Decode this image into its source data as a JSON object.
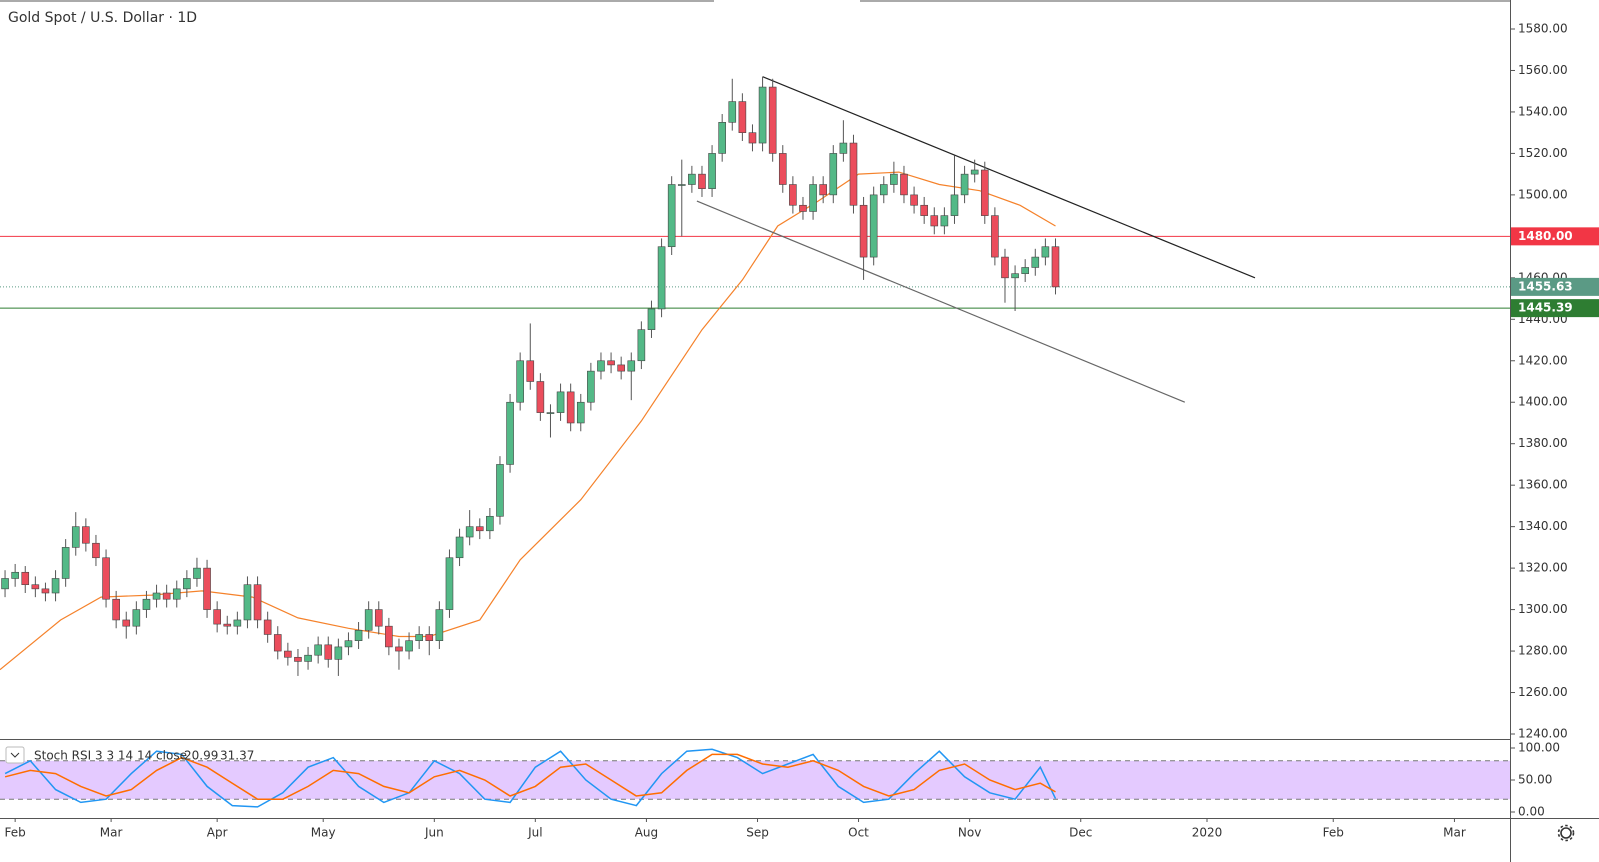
{
  "chart_data": {
    "type": "candlestick",
    "title": "Gold Spot / U.S. Dollar · 1D",
    "up_color": "#53b987",
    "down_color": "#eb4d5c",
    "x": [
      0,
      2,
      4,
      6,
      8,
      10,
      12,
      14,
      16,
      18,
      20,
      22,
      24,
      26,
      28,
      30,
      32,
      34,
      36,
      38,
      40,
      42,
      44,
      46,
      48,
      50,
      52,
      54,
      56,
      58,
      60,
      62,
      64,
      66,
      68,
      70,
      72,
      74,
      76,
      78,
      80,
      82,
      84,
      86,
      88,
      90,
      92,
      94,
      96,
      98,
      100,
      102,
      104,
      106,
      108,
      110,
      112,
      114,
      116,
      118,
      120,
      122,
      124,
      126,
      128,
      130,
      132,
      134,
      136,
      138,
      140,
      142,
      144,
      146,
      148,
      150,
      152,
      154,
      156,
      158,
      160,
      162,
      164,
      166,
      168,
      170,
      172,
      174,
      176,
      178,
      180,
      182,
      184,
      186,
      188,
      190,
      192,
      194,
      196,
      198,
      200,
      202,
      204,
      206,
      208
    ],
    "ohlc": [
      [
        1310,
        1319,
        1306,
        1315
      ],
      [
        1315,
        1322,
        1311,
        1318
      ],
      [
        1318,
        1321,
        1308,
        1312
      ],
      [
        1312,
        1316,
        1306,
        1310
      ],
      [
        1310,
        1313,
        1304,
        1308
      ],
      [
        1308,
        1319,
        1304,
        1315
      ],
      [
        1315,
        1334,
        1311,
        1330
      ],
      [
        1330,
        1347,
        1326,
        1340
      ],
      [
        1340,
        1344,
        1328,
        1332
      ],
      [
        1332,
        1336,
        1321,
        1325
      ],
      [
        1325,
        1329,
        1301,
        1305
      ],
      [
        1305,
        1309,
        1291,
        1295
      ],
      [
        1295,
        1299,
        1286,
        1292
      ],
      [
        1292,
        1304,
        1288,
        1300
      ],
      [
        1300,
        1309,
        1296,
        1305
      ],
      [
        1305,
        1312,
        1301,
        1308
      ],
      [
        1308,
        1312,
        1301,
        1305
      ],
      [
        1305,
        1314,
        1301,
        1310
      ],
      [
        1310,
        1319,
        1306,
        1315
      ],
      [
        1315,
        1325,
        1311,
        1320
      ],
      [
        1320,
        1324,
        1296,
        1300
      ],
      [
        1300,
        1304,
        1289,
        1293
      ],
      [
        1293,
        1297,
        1288,
        1292
      ],
      [
        1292,
        1299,
        1288,
        1295
      ],
      [
        1295,
        1316,
        1291,
        1312
      ],
      [
        1312,
        1316,
        1291,
        1295
      ],
      [
        1295,
        1299,
        1284,
        1288
      ],
      [
        1288,
        1292,
        1276,
        1280
      ],
      [
        1280,
        1284,
        1273,
        1277
      ],
      [
        1277,
        1281,
        1268,
        1275
      ],
      [
        1275,
        1282,
        1271,
        1278
      ],
      [
        1278,
        1287,
        1274,
        1283
      ],
      [
        1283,
        1287,
        1272,
        1276
      ],
      [
        1276,
        1286,
        1268,
        1282
      ],
      [
        1282,
        1289,
        1278,
        1285
      ],
      [
        1285,
        1294,
        1281,
        1290
      ],
      [
        1290,
        1304,
        1286,
        1300
      ],
      [
        1300,
        1304,
        1288,
        1292
      ],
      [
        1292,
        1296,
        1278,
        1282
      ],
      [
        1282,
        1286,
        1271,
        1280
      ],
      [
        1280,
        1289,
        1276,
        1285
      ],
      [
        1285,
        1292,
        1281,
        1288
      ],
      [
        1288,
        1292,
        1278,
        1285
      ],
      [
        1285,
        1304,
        1281,
        1300
      ],
      [
        1300,
        1329,
        1296,
        1325
      ],
      [
        1325,
        1339,
        1321,
        1335
      ],
      [
        1335,
        1348,
        1331,
        1340
      ],
      [
        1340,
        1344,
        1334,
        1338
      ],
      [
        1338,
        1349,
        1334,
        1345
      ],
      [
        1345,
        1374,
        1341,
        1370
      ],
      [
        1370,
        1404,
        1366,
        1400
      ],
      [
        1400,
        1424,
        1396,
        1420
      ],
      [
        1420,
        1438,
        1406,
        1410
      ],
      [
        1410,
        1414,
        1391,
        1395
      ],
      [
        1395,
        1399,
        1383,
        1395
      ],
      [
        1395,
        1409,
        1391,
        1405
      ],
      [
        1405,
        1409,
        1386,
        1390
      ],
      [
        1390,
        1404,
        1386,
        1400
      ],
      [
        1400,
        1419,
        1396,
        1415
      ],
      [
        1415,
        1424,
        1411,
        1420
      ],
      [
        1420,
        1424,
        1414,
        1418
      ],
      [
        1418,
        1422,
        1411,
        1415
      ],
      [
        1415,
        1424,
        1401,
        1420
      ],
      [
        1420,
        1439,
        1416,
        1435
      ],
      [
        1435,
        1449,
        1431,
        1445
      ],
      [
        1445,
        1479,
        1441,
        1475
      ],
      [
        1475,
        1509,
        1471,
        1505
      ],
      [
        1505,
        1517,
        1480,
        1505
      ],
      [
        1505,
        1514,
        1501,
        1510
      ],
      [
        1510,
        1514,
        1499,
        1503
      ],
      [
        1503,
        1524,
        1499,
        1520
      ],
      [
        1520,
        1539,
        1516,
        1535
      ],
      [
        1535,
        1556,
        1531,
        1545
      ],
      [
        1545,
        1549,
        1526,
        1530
      ],
      [
        1530,
        1534,
        1521,
        1525
      ],
      [
        1525,
        1557,
        1521,
        1552
      ],
      [
        1552,
        1556,
        1516,
        1520
      ],
      [
        1520,
        1524,
        1501,
        1505
      ],
      [
        1505,
        1509,
        1491,
        1495
      ],
      [
        1495,
        1499,
        1488,
        1492
      ],
      [
        1492,
        1509,
        1488,
        1505
      ],
      [
        1505,
        1509,
        1496,
        1500
      ],
      [
        1500,
        1524,
        1496,
        1520
      ],
      [
        1520,
        1536,
        1516,
        1525
      ],
      [
        1525,
        1529,
        1491,
        1495
      ],
      [
        1495,
        1499,
        1459,
        1470
      ],
      [
        1470,
        1504,
        1466,
        1500
      ],
      [
        1500,
        1509,
        1496,
        1505
      ],
      [
        1505,
        1516,
        1501,
        1510
      ],
      [
        1510,
        1514,
        1496,
        1500
      ],
      [
        1500,
        1504,
        1491,
        1495
      ],
      [
        1495,
        1499,
        1486,
        1490
      ],
      [
        1490,
        1494,
        1481,
        1485
      ],
      [
        1485,
        1494,
        1481,
        1490
      ],
      [
        1490,
        1519,
        1486,
        1500
      ],
      [
        1500,
        1514,
        1496,
        1510
      ],
      [
        1510,
        1517,
        1506,
        1512
      ],
      [
        1512,
        1516,
        1486,
        1490
      ],
      [
        1490,
        1494,
        1466,
        1470
      ],
      [
        1470,
        1474,
        1448,
        1460
      ],
      [
        1460,
        1466,
        1444,
        1462
      ],
      [
        1462,
        1469,
        1458,
        1465
      ],
      [
        1465,
        1474,
        1461,
        1470
      ],
      [
        1470,
        1479,
        1466,
        1475
      ],
      [
        1475,
        1479,
        1452,
        1455.63
      ]
    ],
    "moving_average": {
      "color": "#f5822b",
      "x": [
        -1,
        11,
        19,
        29,
        39,
        49,
        58,
        68,
        78,
        84,
        94,
        102,
        114,
        126,
        138,
        146,
        153,
        161,
        169,
        177,
        185,
        193,
        201,
        208
      ],
      "values": [
        1271,
        1295,
        1306,
        1307,
        1309,
        1306,
        1296,
        1291,
        1287,
        1287,
        1295,
        1324,
        1353,
        1391,
        1435,
        1459,
        1485,
        1497,
        1510,
        1511,
        1505,
        1502,
        1495,
        1485
      ]
    },
    "trendlines": [
      {
        "color": "#222222",
        "x": [
          150,
          247.5
        ],
        "y": [
          1557,
          1460
        ]
      },
      {
        "color": "#666666",
        "x": [
          137,
          233.6
        ],
        "y": [
          1497,
          1400
        ]
      }
    ],
    "price_lines": [
      {
        "value": 1480,
        "label": "1480.00",
        "color": "#f23645",
        "style": "solid"
      },
      {
        "value": 1455.63,
        "label": "1455.63",
        "color": "#5b9a85",
        "style": "dotted"
      },
      {
        "value": 1445.39,
        "label": "1445.39",
        "color": "#2e7d32",
        "style": "solid"
      }
    ],
    "xlim": [
      -1,
      298
    ],
    "xticks": [
      {
        "value": 2,
        "label": "Feb"
      },
      {
        "value": 21,
        "label": "Mar"
      },
      {
        "value": 42,
        "label": "Apr"
      },
      {
        "value": 63,
        "label": "May"
      },
      {
        "value": 85,
        "label": "Jun"
      },
      {
        "value": 105,
        "label": "Jul"
      },
      {
        "value": 127,
        "label": "Aug"
      },
      {
        "value": 149,
        "label": "Sep"
      },
      {
        "value": 169,
        "label": "Oct"
      },
      {
        "value": 191,
        "label": "Nov"
      },
      {
        "value": 213,
        "label": "Dec"
      },
      {
        "value": 238,
        "label": "2020"
      },
      {
        "value": 263,
        "label": "Feb"
      },
      {
        "value": 287,
        "label": "Mar"
      }
    ],
    "ylim": [
      1240,
      1580
    ],
    "yticks": [
      {
        "value": 1240,
        "label": "1240.00"
      },
      {
        "value": 1260,
        "label": "1260.00"
      },
      {
        "value": 1280,
        "label": "1280.00"
      },
      {
        "value": 1300,
        "label": "1300.00"
      },
      {
        "value": 1320,
        "label": "1320.00"
      },
      {
        "value": 1340,
        "label": "1340.00"
      },
      {
        "value": 1360,
        "label": "1360.00"
      },
      {
        "value": 1380,
        "label": "1380.00"
      },
      {
        "value": 1400,
        "label": "1400.00"
      },
      {
        "value": 1420,
        "label": "1420.00"
      },
      {
        "value": 1440,
        "label": "1440.00"
      },
      {
        "value": 1460,
        "label": "1460.00"
      },
      {
        "value": 1480,
        "label": "1480.00"
      },
      {
        "value": 1500,
        "label": "1500.00"
      },
      {
        "value": 1520,
        "label": "1520.00"
      },
      {
        "value": 1540,
        "label": "1540.00"
      },
      {
        "value": 1560,
        "label": "1560.00"
      },
      {
        "value": 1580,
        "label": "1580.00"
      }
    ],
    "indicator": {
      "name": "Stoch RSI 3 3 14 14 close",
      "ylim": [
        0,
        100
      ],
      "yticks": [
        {
          "value": 0,
          "label": "0.00"
        },
        {
          "value": 50,
          "label": "50.00"
        },
        {
          "value": 100,
          "label": "100.00"
        }
      ],
      "bands": [
        20,
        80
      ],
      "band_color": "#d9b3ff",
      "x": [
        0,
        5,
        10,
        15,
        20,
        25,
        30,
        35,
        40,
        45,
        50,
        55,
        60,
        65,
        70,
        75,
        80,
        85,
        90,
        95,
        100,
        105,
        110,
        115,
        120,
        125,
        130,
        135,
        140,
        145,
        150,
        155,
        160,
        165,
        170,
        175,
        180,
        185,
        190,
        195,
        200,
        205,
        208
      ],
      "series": [
        {
          "color": "#2196f3",
          "values": [
            60,
            80,
            35,
            15,
            20,
            60,
            95,
            90,
            40,
            10,
            8,
            30,
            70,
            85,
            40,
            15,
            30,
            80,
            60,
            20,
            15,
            70,
            95,
            50,
            20,
            10,
            60,
            95,
            98,
            85,
            60,
            75,
            90,
            40,
            15,
            20,
            60,
            95,
            55,
            30,
            20,
            70,
            20.99
          ],
          "last_label": "20.99"
        },
        {
          "color": "#ff6d00",
          "values": [
            55,
            65,
            60,
            40,
            25,
            35,
            65,
            85,
            70,
            45,
            20,
            20,
            40,
            65,
            60,
            40,
            30,
            55,
            65,
            50,
            25,
            40,
            70,
            75,
            50,
            25,
            30,
            65,
            90,
            90,
            75,
            70,
            80,
            65,
            40,
            25,
            35,
            65,
            75,
            50,
            35,
            45,
            31.37
          ],
          "last_label": "31.37"
        }
      ]
    }
  }
}
